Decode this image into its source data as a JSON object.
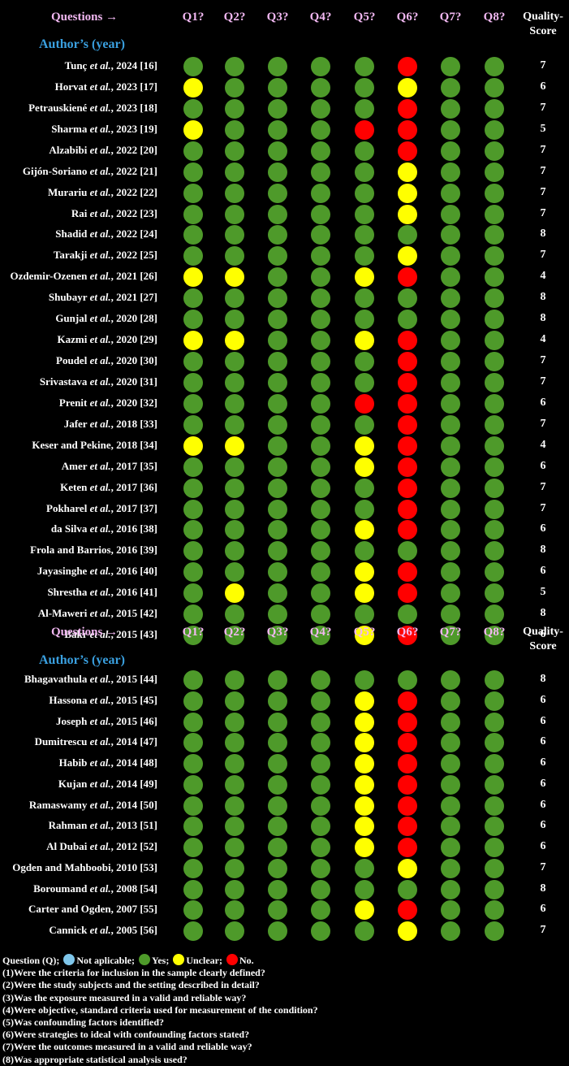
{
  "chart_data": {
    "type": "table",
    "header": {
      "questions_label": "Questions →",
      "author_label": "Author’s (year)",
      "columns": [
        "Q1?",
        "Q2?",
        "Q3?",
        "Q4?",
        "Q5?",
        "Q6?",
        "Q7?",
        "Q8?"
      ],
      "score_label_1": "Quality-",
      "score_label_2": "Score"
    },
    "colors": {
      "Y": "#4e9a2a",
      "U": "#ffff00",
      "N": "#ff0000",
      "NA": "#7fc6ea"
    },
    "sections": [
      {
        "rows": [
          {
            "author": "Tunç et al., 2024 [16]",
            "ratings": "YYYYYNYY",
            "score": 7
          },
          {
            "author": "Horvat et al., 2023 [17]",
            "ratings": "UYYYYUYY",
            "score": 6
          },
          {
            "author": "Petrauskiené et al., 2023 [18]",
            "ratings": "YYYYYNYY",
            "score": 7
          },
          {
            "author": "Sharma et al., 2023 [19]",
            "ratings": "UYYYNNYY",
            "score": 5
          },
          {
            "author": "Alzabibi et al., 2022 [20]",
            "ratings": "YYYYYNYY",
            "score": 7
          },
          {
            "author": "Gijón-Soriano et al., 2022 [21]",
            "ratings": "YYYYYUYY",
            "score": 7
          },
          {
            "author": "Murariu et al., 2022 [22]",
            "ratings": "YYYYYUYY",
            "score": 7
          },
          {
            "author": "Rai et al., 2022 [23]",
            "ratings": "YYYYYUYY",
            "score": 7
          },
          {
            "author": "Shadid et al., 2022 [24]",
            "ratings": "YYYYYYYY",
            "score": 8
          },
          {
            "author": "Tarakji et al., 2022 [25]",
            "ratings": "YYYYYUYY",
            "score": 7
          },
          {
            "author": "Ozdemir-Ozenen et al., 2021 [26]",
            "ratings": "UUYYUNYY",
            "score": 4
          },
          {
            "author": "Shubayr et al., 2021 [27]",
            "ratings": "YYYYYYYY",
            "score": 8
          },
          {
            "author": "Gunjal et al., 2020 [28]",
            "ratings": "YYYYYYYY",
            "score": 8
          },
          {
            "author": "Kazmi et al., 2020 [29]",
            "ratings": "UUYYUNYY",
            "score": 4
          },
          {
            "author": "Poudel et al., 2020 [30]",
            "ratings": "YYYYYNYY",
            "score": 7
          },
          {
            "author": "Srivastava et al., 2020 [31]",
            "ratings": "YYYYYNYY",
            "score": 7
          },
          {
            "author": "Prenit et al., 2020 [32]",
            "ratings": "YYYYNNYY",
            "score": 6
          },
          {
            "author": "Jafer et al., 2018 [33]",
            "ratings": "YYYYYNYY",
            "score": 7
          },
          {
            "author": "Keser and Pekine, 2018 [34]",
            "ratings": "UUYYUNYY",
            "score": 4
          },
          {
            "author": "Amer et al., 2017 [35]",
            "ratings": "YYYYUNYY",
            "score": 6
          },
          {
            "author": "Keten et al., 2017 [36]",
            "ratings": "YYYYYNYY",
            "score": 7
          },
          {
            "author": "Pokharel et al., 2017 [37]",
            "ratings": "YYYYYNYY",
            "score": 7
          },
          {
            "author": "da Silva et al., 2016 [38]",
            "ratings": "YYYYUNYY",
            "score": 6
          },
          {
            "author": "Frola and Barrios, 2016 [39]",
            "ratings": "YYYYYYYY",
            "score": 8
          },
          {
            "author": "Jayasinghe et al., 2016 [40]",
            "ratings": "YYYYUNYY",
            "score": 6
          },
          {
            "author": "Shrestha et al., 2016 [41]",
            "ratings": "YUYYUNYY",
            "score": 5
          },
          {
            "author": "Al-Maweri et al., 2015 [42]",
            "ratings": "YYYYYYYY",
            "score": 8
          },
          {
            "author": "Bakr et al., 2015 [43]",
            "ratings": "YYYYUNYY",
            "score": 6
          }
        ]
      },
      {
        "rows": [
          {
            "author": "Bhagavathula et al., 2015 [44]",
            "ratings": "YYYYYYYY",
            "score": 8
          },
          {
            "author": "Hassona et al., 2015 [45]",
            "ratings": "YYYYUNYY",
            "score": 6
          },
          {
            "author": "Joseph et al., 2015 [46]",
            "ratings": "YYYYUNYY",
            "score": 6
          },
          {
            "author": "Dumitrescu et al., 2014 [47]",
            "ratings": "YYYYUNYY",
            "score": 6
          },
          {
            "author": "Habib et al., 2014 [48]",
            "ratings": "YYYYUNYY",
            "score": 6
          },
          {
            "author": "Kujan et al., 2014 [49]",
            "ratings": "YYYYUNYY",
            "score": 6
          },
          {
            "author": "Ramaswamy et al., 2014 [50]",
            "ratings": "YYYYUNYY",
            "score": 6
          },
          {
            "author": "Rahman et al., 2013 [51]",
            "ratings": "YYYYUNYY",
            "score": 6
          },
          {
            "author": "Al Dubai et al., 2012 [52]",
            "ratings": "YYYYUNYY",
            "score": 6
          },
          {
            "author": "Ogden and Mahboobi, 2010 [53]",
            "ratings": "YYYYYUYY",
            "score": 7
          },
          {
            "author": "Boroumand et al., 2008 [54]",
            "ratings": "YYYYYYYY",
            "score": 8
          },
          {
            "author": "Carter and Ogden, 2007 [55]",
            "ratings": "YYYYUNYY",
            "score": 6
          },
          {
            "author": "Cannick et al., 2005 [56]",
            "ratings": "YYYYYUYY",
            "score": 7
          }
        ]
      }
    ],
    "legend": {
      "prefix": "Question (Q);",
      "items": [
        {
          "key": "NA",
          "label": "Not aplicable;"
        },
        {
          "key": "Y",
          "label": "Yes;"
        },
        {
          "key": "U",
          "label": "Unclear;"
        },
        {
          "key": "N",
          "label": "No."
        }
      ]
    },
    "questions": [
      "(1)Were the criteria for inclusion in the sample clearly defined?",
      "(2)Were the study subjects and the setting described in detail?",
      "(3)Was the exposure measured in a valid and reliable way?",
      "(4)Were objective, standard criteria used for measurement of the condition?",
      "(5)Was confounding factors identified?",
      "(6)Were strategies to ideal with confounding factors stated?",
      "(7)Were the outcomes measured in a valid and reliable way?",
      "(8)Was appropriate statistical analysis used?"
    ]
  }
}
